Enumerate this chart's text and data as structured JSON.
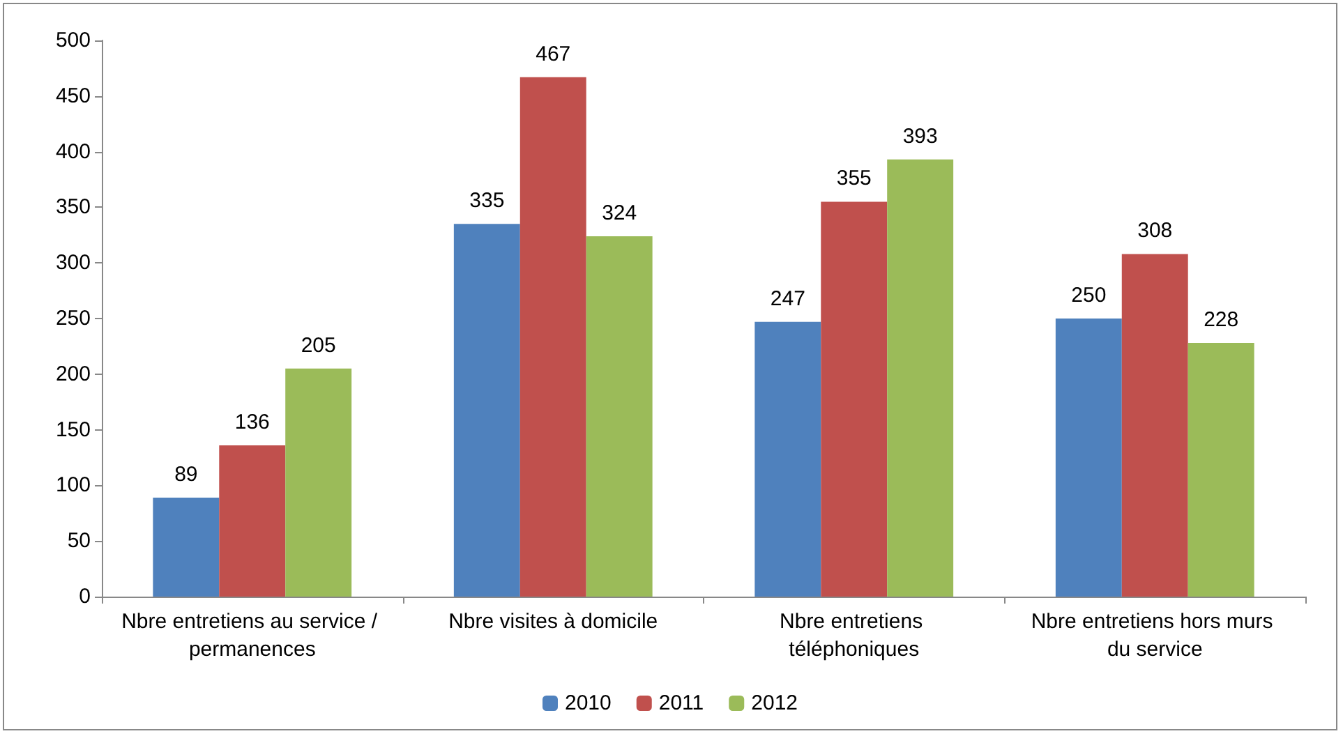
{
  "chart_data": {
    "type": "bar",
    "categories": [
      "Nbre entretiens au service / permanences",
      "Nbre visites à domicile",
      "Nbre entretiens téléphoniques",
      "Nbre entretiens hors murs du service"
    ],
    "series": [
      {
        "name": "2010",
        "color": "#4f81bd",
        "values": [
          89,
          335,
          247,
          250
        ]
      },
      {
        "name": "2011",
        "color": "#c0504d",
        "values": [
          136,
          467,
          355,
          308
        ]
      },
      {
        "name": "2012",
        "color": "#9bbb59",
        "values": [
          205,
          324,
          393,
          228
        ]
      }
    ],
    "ylim": [
      0,
      500
    ],
    "yticks": [
      0,
      50,
      100,
      150,
      200,
      250,
      300,
      350,
      400,
      450,
      500
    ],
    "grid": false,
    "legend": "bottom",
    "data_labels": true
  }
}
